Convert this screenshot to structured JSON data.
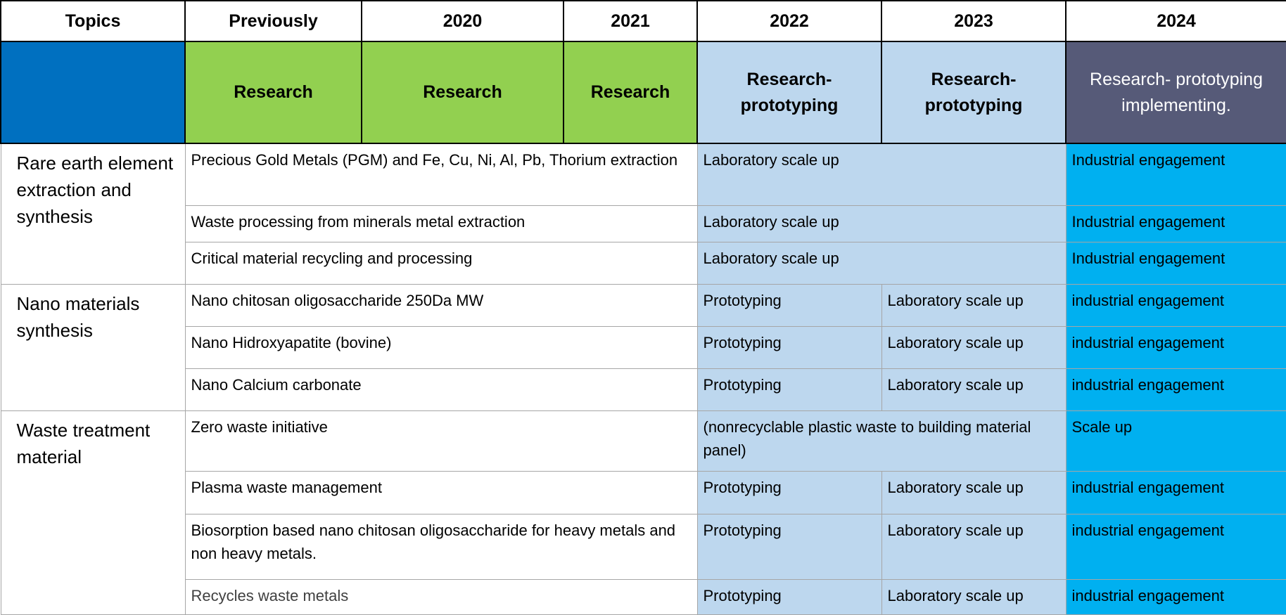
{
  "header": {
    "columns": [
      "Topics",
      "Previously",
      "2020",
      "2021",
      "2022",
      "2023",
      "2024"
    ]
  },
  "phases": [
    "Research",
    "Research",
    "Research",
    "Research-prototyping",
    "Research-prototyping",
    "Research- prototyping implementing."
  ],
  "groups": [
    {
      "topic": "Rare earth element extraction and synthesis",
      "rows": [
        {
          "item": "Precious Gold Metals (PGM) and Fe, Cu, Ni, Al, Pb, Thorium extraction",
          "cells": [
            "Laboratory scale up",
            "Industrial engagement"
          ]
        },
        {
          "item": "Waste processing from minerals metal extraction",
          "cells": [
            "Laboratory scale up",
            "Industrial engagement"
          ]
        },
        {
          "item": "Critical material recycling and processing",
          "cells": [
            "Laboratory scale up",
            "Industrial engagement"
          ]
        }
      ]
    },
    {
      "topic": "Nano materials synthesis",
      "rows": [
        {
          "item": "Nano chitosan oligosaccharide 250Da MW",
          "cells": [
            "Prototyping",
            "Laboratory scale up",
            "industrial engagement"
          ]
        },
        {
          "item": "Nano Hidroxyapatite (bovine)",
          "cells": [
            "Prototyping",
            "Laboratory scale up",
            "industrial engagement"
          ]
        },
        {
          "item": "Nano Calcium carbonate",
          "cells": [
            "Prototyping",
            "Laboratory scale up",
            "industrial engagement"
          ]
        }
      ]
    },
    {
      "topic": "Waste treatment material",
      "rows": [
        {
          "item": "Zero waste initiative",
          "cells": [
            "(nonrecyclable plastic waste to building material panel)",
            "Scale up"
          ]
        },
        {
          "item": "Plasma waste management",
          "cells": [
            "Prototyping",
            "Laboratory scale up",
            "industrial engagement"
          ]
        },
        {
          "item": "Biosorption based nano chitosan oligosaccharide for heavy metals and non heavy metals.",
          "cells": [
            "Prototyping",
            "Laboratory scale up",
            "industrial engagement"
          ]
        },
        {
          "item": "Recycles waste metals",
          "cells": [
            "Prototyping",
            "Laboratory scale up",
            "industrial engagement"
          ]
        }
      ]
    }
  ]
}
